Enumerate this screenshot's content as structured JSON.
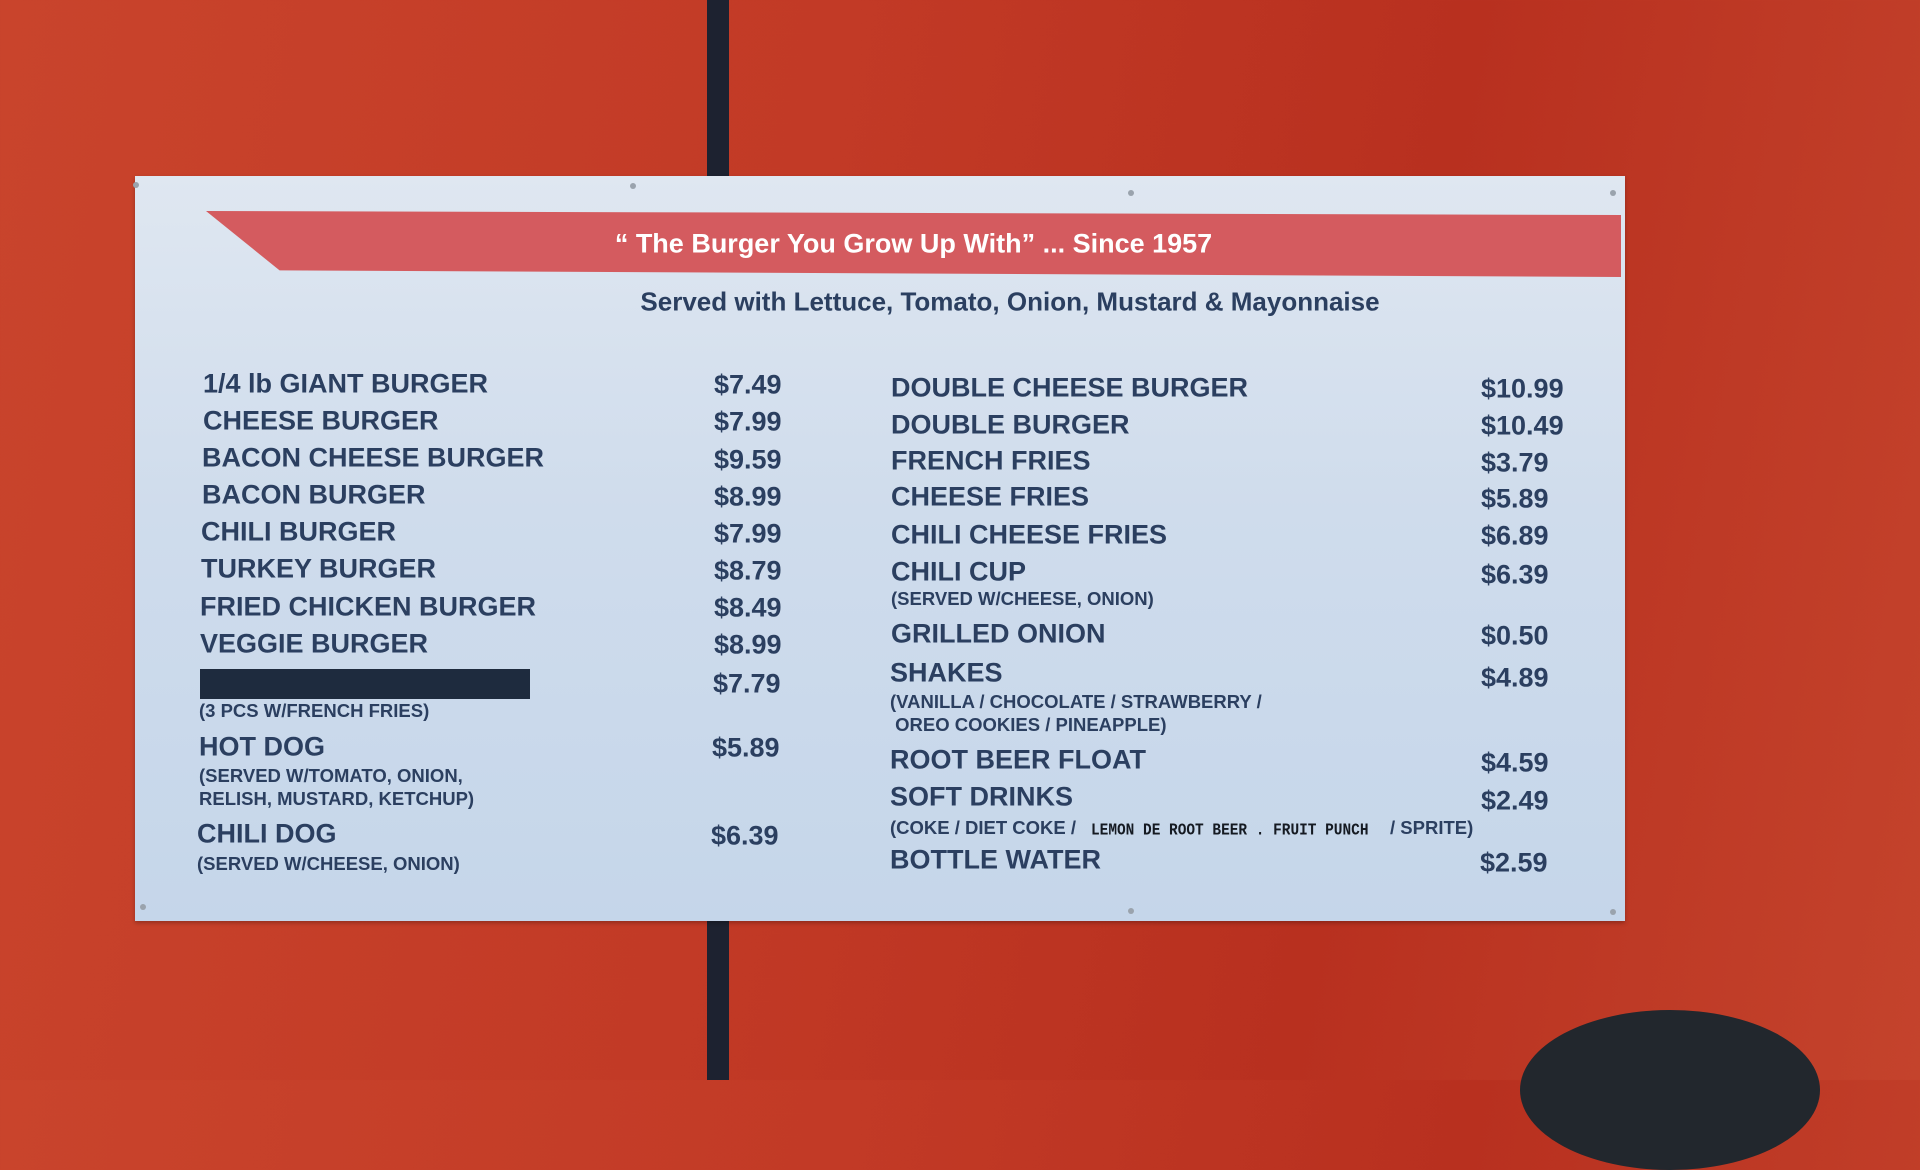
{
  "banner": {
    "tagline": "“ The Burger You Grow Up With”  ... Since 1957"
  },
  "subtitle": "Served with Lettuce, Tomato, Onion, Mustard & Mayonnaise",
  "colors": {
    "wall": "#c23a26",
    "board": "#cfdcec",
    "banner": "#d45b5f",
    "text": "#2b3f60"
  },
  "left": [
    {
      "name": "1/4 lb GIANT BURGER",
      "price": "$7.49"
    },
    {
      "name": "CHEESE BURGER",
      "price": "$7.99"
    },
    {
      "name": "BACON CHEESE BURGER",
      "price": "$9.59"
    },
    {
      "name": "BACON BURGER",
      "price": "$8.99"
    },
    {
      "name": "CHILI BURGER",
      "price": "$7.99"
    },
    {
      "name": "TURKEY BURGER",
      "price": "$8.79"
    },
    {
      "name": "FRIED CHICKEN BURGER",
      "price": "$8.49"
    },
    {
      "name": "VEGGIE BURGER",
      "price": "$8.99"
    },
    {
      "name": "",
      "price": "$7.79",
      "note": "(3 PCS W/FRENCH FRIES)"
    },
    {
      "name": "HOT DOG",
      "price": "$5.89",
      "note": "(SERVED W/TOMATO, ONION,",
      "note2": "RELISH, MUSTARD, KETCHUP)"
    },
    {
      "name": "CHILI DOG",
      "price": "$6.39",
      "note": "(SERVED W/CHEESE, ONION)"
    }
  ],
  "right": [
    {
      "name": "DOUBLE CHEESE BURGER",
      "price": "$10.99"
    },
    {
      "name": "DOUBLE BURGER",
      "price": "$10.49"
    },
    {
      "name": "FRENCH FRIES",
      "price": "$3.79"
    },
    {
      "name": "CHEESE FRIES",
      "price": "$5.89"
    },
    {
      "name": "CHILI CHEESE FRIES",
      "price": "$6.89"
    },
    {
      "name": "CHILI CUP",
      "price": "$6.39",
      "note": "(SERVED W/CHEESE, ONION)"
    },
    {
      "name": "GRILLED ONION",
      "price": "$0.50"
    },
    {
      "name": "SHAKES",
      "price": "$4.89",
      "note": "(VANILLA / CHOCOLATE / STRAWBERRY /",
      "note2": " OREO COOKIES / PINEAPPLE)"
    },
    {
      "name": "ROOT BEER FLOAT",
      "price": "$4.59"
    },
    {
      "name": "SOFT DRINKS",
      "price": "$2.49",
      "note": "(COKE / DIET COKE / ",
      "note_label": "LEMON DE  ROOT BEER . FRUIT PUNCH",
      "note_end": "/ SPRITE)"
    },
    {
      "name": "BOTTLE WATER",
      "price": "$2.59"
    }
  ]
}
